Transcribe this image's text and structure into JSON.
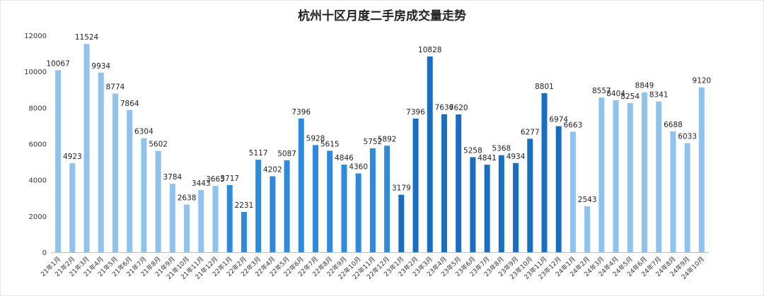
{
  "chart_data": {
    "type": "bar",
    "title": "杭州十区月度二手房成交量走势",
    "xlabel": "",
    "ylabel": "",
    "ylim": [
      0,
      12000
    ],
    "yticks": [
      0,
      2000,
      4000,
      6000,
      8000,
      10000,
      12000
    ],
    "grid": false,
    "legend": "none",
    "categories": [
      "21年1月",
      "21年2月",
      "21年3月",
      "21年4月",
      "21年5月",
      "21年6月",
      "21年7月",
      "21年8月",
      "21年9月",
      "21年10月",
      "21年11月",
      "21年12月",
      "22年1月",
      "22年2月",
      "22年3月",
      "22年4月",
      "22年5月",
      "22年6月",
      "22年7月",
      "22年8月",
      "22年9月",
      "22年10月",
      "22年11月",
      "22年12月",
      "23年1月",
      "23年2月",
      "23年3月",
      "23年4月",
      "23年5月",
      "23年6月",
      "23年7月",
      "23年8月",
      "23年9月",
      "23年10月",
      "23年11月",
      "23年12月",
      "24年1月",
      "24年2月",
      "24年3月",
      "24年4月",
      "24年5月",
      "24年6月",
      "24年7月",
      "24年8月",
      "24年9月",
      "24年10月"
    ],
    "values": [
      10067,
      4923,
      11524,
      9934,
      8774,
      7864,
      6304,
      5602,
      3784,
      2638,
      3443,
      3665,
      3717,
      2231,
      5117,
      4202,
      5087,
      7396,
      5928,
      5615,
      4846,
      4360,
      5752,
      5892,
      3179,
      7396,
      10828,
      7636,
      7620,
      5258,
      4841,
      5368,
      4934,
      6277,
      8801,
      6974,
      6663,
      2543,
      8557,
      8404,
      8254,
      8849,
      8341,
      6688,
      6033,
      9120
    ],
    "year_colors": {
      "2021": "#8FC3EE",
      "2022": "#2F8BDA",
      "2023": "#1A6EC0",
      "2024": "#8FC3EE"
    }
  }
}
